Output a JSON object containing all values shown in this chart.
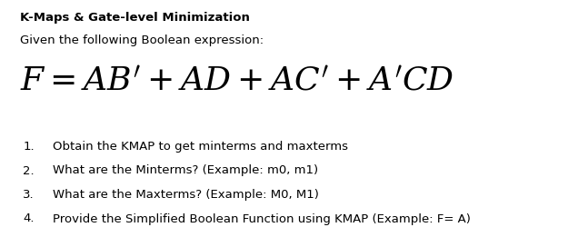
{
  "title": "K-Maps & Gate-level Minimization",
  "subtitle": "Given the following Boolean expression:",
  "formula": "$F = AB' + AD + AC' + A'CD$",
  "items": [
    "Obtain the KMAP to get minterms and maxterms",
    "What are the Minterms? (Example: m0, m1)",
    "What are the Maxterms? (Example: M0, M1)",
    "Provide the Simplified Boolean Function using KMAP (Example: F= A)"
  ],
  "bg_color": "#ffffff",
  "text_color": "#000000",
  "title_fontsize": 9.5,
  "subtitle_fontsize": 9.5,
  "formula_fontsize": 26,
  "item_fontsize": 9.5,
  "fig_width": 6.36,
  "fig_height": 2.72
}
